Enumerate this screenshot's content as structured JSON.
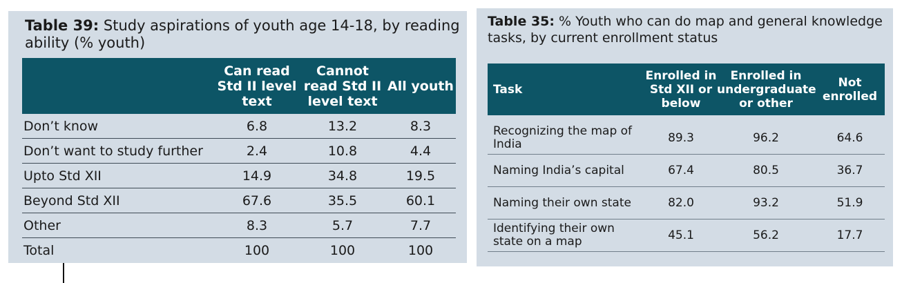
{
  "table39": {
    "caption_bold": "Table 39:",
    "caption_rest": " Study aspirations of youth age 14-18, by reading ability (% youth)",
    "headers": [
      "",
      "Can read Std II level text",
      "Cannot read Std II level text",
      "All youth"
    ],
    "rows": [
      [
        "Don’t know",
        "6.8",
        "13.2",
        "8.3"
      ],
      [
        "Don’t want to study further",
        "2.4",
        "10.8",
        "4.4"
      ],
      [
        "Upto Std XII",
        "14.9",
        "34.8",
        "19.5"
      ],
      [
        "Beyond Std XII",
        "67.6",
        "35.5",
        "60.1"
      ],
      [
        "Other",
        "8.3",
        "5.7",
        "7.7"
      ],
      [
        "Total",
        "100",
        "100",
        "100"
      ]
    ]
  },
  "table35": {
    "caption_bold": "Table 35:",
    "caption_rest": " % Youth who can do map and general knowledge tasks, by current enrollment status",
    "headers": [
      "Task",
      "Enrolled in Std XII or below",
      "Enrolled in undergraduate or other",
      "Not enrolled"
    ],
    "rows": [
      [
        "Recognizing the map of India",
        "89.3",
        "96.2",
        "64.6"
      ],
      [
        "Naming India’s capital",
        "67.4",
        "80.5",
        "36.7"
      ],
      [
        "Naming their own state",
        "82.0",
        "93.2",
        "51.9"
      ],
      [
        "Identifying their own state on a map",
        "45.1",
        "56.2",
        "17.7"
      ]
    ]
  },
  "colors": {
    "panel_bg": "#d3dce5",
    "header_bg": "#0d5566",
    "header_text": "#ffffff"
  }
}
